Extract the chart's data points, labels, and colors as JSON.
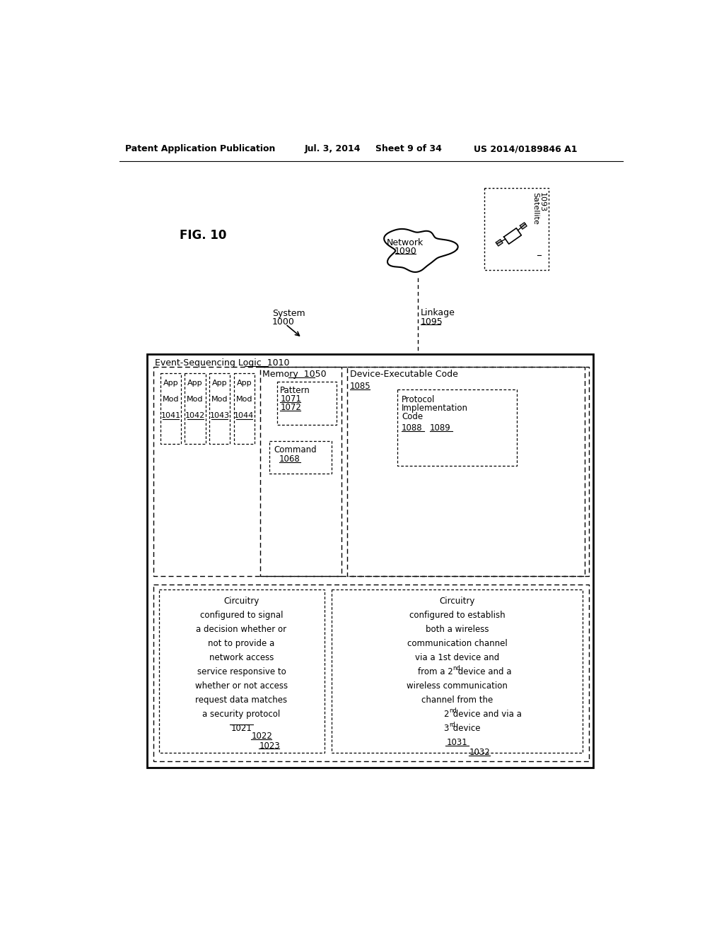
{
  "title_header": "Patent Application Publication",
  "date_header": "Jul. 3, 2014",
  "sheet_header": "Sheet 9 of 34",
  "patent_header": "US 2014/0189846 A1",
  "fig_label": "FIG. 10",
  "bg_color": "#ffffff",
  "text_color": "#000000"
}
